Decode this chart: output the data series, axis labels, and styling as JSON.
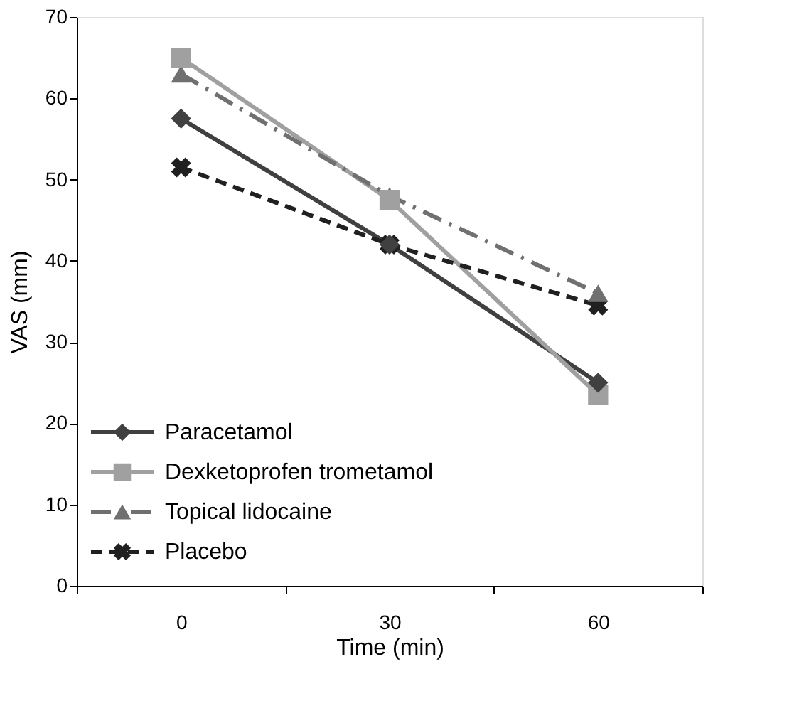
{
  "chart_data": {
    "type": "line",
    "xlabel": "Time (min)",
    "ylabel": "VAS (mm)",
    "categories": [
      "0",
      "30",
      "60"
    ],
    "series": [
      {
        "name": "Paracetamol",
        "color": "#404040",
        "values": [
          57.5,
          42,
          25
        ],
        "marker": "diamond",
        "line_style": "solid"
      },
      {
        "name": "Dexketoprofen trometamol",
        "color": "#a0a0a0",
        "values": [
          65,
          47.5,
          23.5
        ],
        "marker": "square",
        "line_style": "solid"
      },
      {
        "name": "Topical lidocaine",
        "color": "#707070",
        "values": [
          63,
          48,
          36
        ],
        "marker": "triangle",
        "line_style": "dashdot"
      },
      {
        "name": "Placebo",
        "color": "#202020",
        "values": [
          51.5,
          42,
          34.5
        ],
        "marker": "cross",
        "line_style": "dashed"
      }
    ],
    "ylim": [
      0,
      70
    ],
    "yticks": [
      0,
      10,
      20,
      30,
      40,
      50,
      60,
      70
    ],
    "grid": false,
    "legend": "bottom left"
  }
}
